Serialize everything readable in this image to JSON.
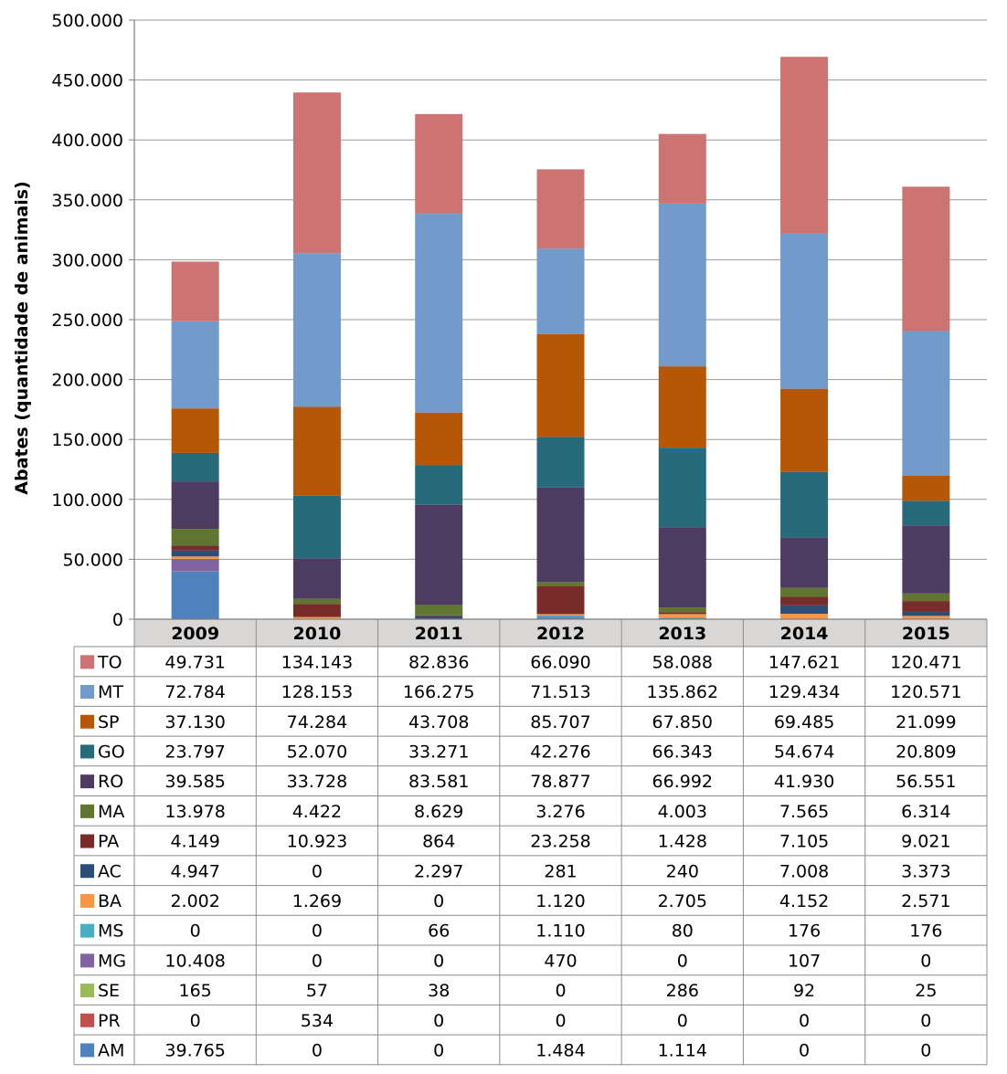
{
  "chart_data": {
    "type": "bar",
    "stacked": true,
    "ylabel": "Abates (quantidade de animais)",
    "ylim": [
      0,
      500000
    ],
    "yticks": [
      0,
      50000,
      100000,
      150000,
      200000,
      250000,
      300000,
      350000,
      400000,
      450000,
      500000
    ],
    "ytick_labels": [
      "0",
      "50.000",
      "100.000",
      "150.000",
      "200.000",
      "250.000",
      "300.000",
      "350.000",
      "400.000",
      "450.000",
      "500.000"
    ],
    "grid": true,
    "legend": "data-table-below",
    "categories": [
      "2009",
      "2010",
      "2011",
      "2012",
      "2013",
      "2014",
      "2015"
    ],
    "series": [
      {
        "name": "AM",
        "color": "#4F81BD",
        "values": [
          39765,
          0,
          0,
          1484,
          1114,
          0,
          0
        ],
        "labels": [
          "39.765",
          "0",
          "0",
          "1.484",
          "1.114",
          "0",
          "0"
        ]
      },
      {
        "name": "PR",
        "color": "#C0504D",
        "values": [
          0,
          534,
          0,
          0,
          0,
          0,
          0
        ],
        "labels": [
          "0",
          "534",
          "0",
          "0",
          "0",
          "0",
          "0"
        ]
      },
      {
        "name": "SE",
        "color": "#9BBB59",
        "values": [
          165,
          57,
          38,
          0,
          286,
          92,
          25
        ],
        "labels": [
          "165",
          "57",
          "38",
          "0",
          "286",
          "92",
          "25"
        ]
      },
      {
        "name": "MG",
        "color": "#8064A2",
        "values": [
          10408,
          0,
          0,
          470,
          0,
          107,
          0
        ],
        "labels": [
          "10.408",
          "0",
          "0",
          "470",
          "0",
          "107",
          "0"
        ]
      },
      {
        "name": "MS",
        "color": "#4BACC6",
        "values": [
          0,
          0,
          66,
          1110,
          80,
          176,
          176
        ],
        "labels": [
          "0",
          "0",
          "66",
          "1.110",
          "80",
          "176",
          "176"
        ]
      },
      {
        "name": "BA",
        "color": "#F79646",
        "values": [
          2002,
          1269,
          0,
          1120,
          2705,
          4152,
          2571
        ],
        "labels": [
          "2.002",
          "1.269",
          "0",
          "1.120",
          "2.705",
          "4.152",
          "2.571"
        ]
      },
      {
        "name": "AC",
        "color": "#2C4D75",
        "values": [
          4947,
          0,
          2297,
          281,
          240,
          7008,
          3373
        ],
        "labels": [
          "4.947",
          "0",
          "2.297",
          "281",
          "240",
          "7.008",
          "3.373"
        ]
      },
      {
        "name": "PA",
        "color": "#772C2A",
        "values": [
          4149,
          10923,
          864,
          23258,
          1428,
          7105,
          9021
        ],
        "labels": [
          "4.149",
          "10.923",
          "864",
          "23.258",
          "1.428",
          "7.105",
          "9.021"
        ]
      },
      {
        "name": "MA",
        "color": "#5F7530",
        "values": [
          13978,
          4422,
          8629,
          3276,
          4003,
          7565,
          6314
        ],
        "labels": [
          "13.978",
          "4.422",
          "8.629",
          "3.276",
          "4.003",
          "7.565",
          "6.314"
        ]
      },
      {
        "name": "RO",
        "color": "#4D3B62",
        "values": [
          39585,
          33728,
          83581,
          78877,
          66992,
          41930,
          56551
        ],
        "labels": [
          "39.585",
          "33.728",
          "83.581",
          "78.877",
          "66.992",
          "41.930",
          "56.551"
        ]
      },
      {
        "name": "GO",
        "color": "#276A7C",
        "values": [
          23797,
          52070,
          33271,
          42276,
          66343,
          54674,
          20809
        ],
        "labels": [
          "23.797",
          "52.070",
          "33.271",
          "42.276",
          "66.343",
          "54.674",
          "20.809"
        ]
      },
      {
        "name": "SP",
        "color": "#B65708",
        "values": [
          37130,
          74284,
          43708,
          85707,
          67850,
          69485,
          21099
        ],
        "labels": [
          "37.130",
          "74.284",
          "43.708",
          "85.707",
          "67.850",
          "69.485",
          "21.099"
        ]
      },
      {
        "name": "MT",
        "color": "#729ACA",
        "values": [
          72784,
          128153,
          166275,
          71513,
          135862,
          129434,
          120571
        ],
        "labels": [
          "72.784",
          "128.153",
          "166.275",
          "71.513",
          "135.862",
          "129.434",
          "120.571"
        ]
      },
      {
        "name": "TO",
        "color": "#CD7371",
        "values": [
          49731,
          134143,
          82836,
          66090,
          58088,
          147621,
          120471
        ],
        "labels": [
          "49.731",
          "134.143",
          "82.836",
          "66.090",
          "58.088",
          "147.621",
          "120.471"
        ]
      }
    ]
  }
}
